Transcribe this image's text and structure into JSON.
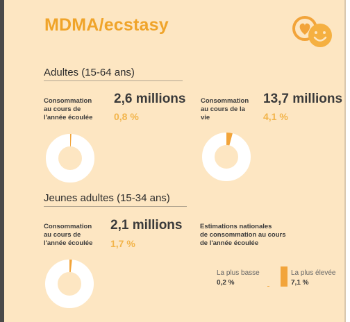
{
  "header": {
    "title": "MDMA/ecstasy",
    "logo_icon": "heart-smiley-icon"
  },
  "adults": {
    "section_title": "Adultes (15-64 ans)",
    "last_year": {
      "label_lines": [
        "Consommation",
        "au cours de",
        "l'année écoulée"
      ],
      "count": "2,6 millions",
      "percent": "0,8 %",
      "percent_value": 0.8
    },
    "lifetime": {
      "label_lines": [
        "Consommation",
        "au cours de la",
        "vie"
      ],
      "count": "13,7 millions",
      "percent": "4,1 %",
      "percent_value": 4.1
    }
  },
  "young_adults": {
    "section_title": "Jeunes adultes (15-34 ans)",
    "last_year": {
      "label_lines": [
        "Consommation",
        "au cours de",
        "l'année écoulée"
      ],
      "count": "2,1 millions",
      "percent": "1,7 %",
      "percent_value": 1.7
    }
  },
  "national_estimates": {
    "label_lines": [
      "Estimations nationales",
      "de consommation au cours",
      "de l'année écoulée"
    ],
    "lowest_label": "La plus basse",
    "lowest_value": "0,2 %",
    "highest_label": "La plus élevée",
    "highest_value": "7,1 %"
  },
  "colors": {
    "accent": "#f2a43a",
    "background": "#fde6c2",
    "donut_base": "#ffffff"
  }
}
